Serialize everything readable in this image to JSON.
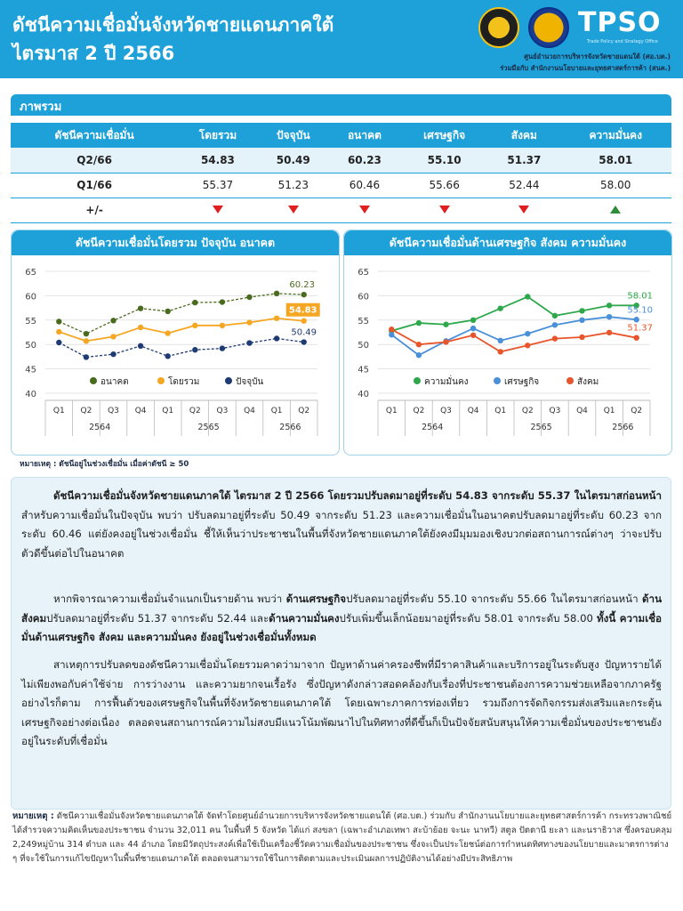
{
  "header": {
    "title_line1": "ดัชนีความเชื่อมั่นจังหวัดชายแดนภาคใต้",
    "title_line2": "ไตรมาส 2 ปี 2566",
    "brand": "TPSO",
    "brand_sub": "Trade Policy and Strategy Office",
    "credit_line1": "ศูนย์อำนวยการบริหารจังหวัดชายแดนใต้ (ศอ.บต.)",
    "credit_line2": "ร่วมมือกับ สำนักงานนโยบายและยุทธศาสตร์การค้า (สนค.)"
  },
  "overview": {
    "section_title": "ภาพรวม",
    "columns": [
      "ดัชนีความเชื่อมั่น",
      "โดยรวม",
      "ปัจจุบัน",
      "อนาคต",
      "เศรษฐกิจ",
      "สังคม",
      "ความมั่นคง"
    ],
    "rows": [
      {
        "label": "Q2/66",
        "values": [
          "54.83",
          "50.49",
          "60.23",
          "55.10",
          "51.37",
          "58.01"
        ]
      },
      {
        "label": "Q1/66",
        "values": [
          "55.37",
          "51.23",
          "60.46",
          "55.66",
          "52.44",
          "58.00"
        ]
      }
    ],
    "change_label": "+/-",
    "change": [
      "down",
      "down",
      "down",
      "down",
      "down",
      "up"
    ],
    "colors": {
      "down": "#e02020",
      "up": "#2e8b3a",
      "accent": "#1da1d8"
    }
  },
  "chart_data": [
    {
      "type": "line",
      "title": "ดัชนีความเชื่อมั่นโดยรวม ปัจจุบัน อนาคต",
      "categories": [
        "Q1",
        "Q2",
        "Q3",
        "Q4",
        "Q1",
        "Q2",
        "Q3",
        "Q4",
        "Q1",
        "Q2"
      ],
      "year_groups": [
        {
          "label": "2564",
          "span": 4
        },
        {
          "label": "2565",
          "span": 4
        },
        {
          "label": "2566",
          "span": 2
        }
      ],
      "ylim": [
        40,
        65
      ],
      "yticks": [
        40,
        45,
        50,
        55,
        60,
        65
      ],
      "legend_position": "bottom",
      "series": [
        {
          "name": "อนาคต",
          "color": "#4a6b1e",
          "dashed": true,
          "values": [
            54.7,
            52.2,
            54.9,
            57.4,
            56.8,
            58.6,
            58.7,
            59.7,
            60.46,
            60.23
          ],
          "end_label": "60.23"
        },
        {
          "name": "โดยรวม",
          "color": "#f5a623",
          "dashed": false,
          "values": [
            52.6,
            50.7,
            51.6,
            53.5,
            52.3,
            53.9,
            53.9,
            54.5,
            55.37,
            54.83
          ],
          "end_label": "54.83"
        },
        {
          "name": "ปัจจุบัน",
          "color": "#1f3b73",
          "dashed": true,
          "values": [
            50.4,
            47.4,
            48.0,
            49.7,
            47.6,
            48.9,
            49.2,
            50.3,
            51.23,
            50.49
          ],
          "end_label": "50.49"
        }
      ]
    },
    {
      "type": "line",
      "title": "ดัชนีความเชื่อมั่นด้านเศรษฐกิจ สังคม ความมั่นคง",
      "categories": [
        "Q1",
        "Q2",
        "Q3",
        "Q4",
        "Q1",
        "Q2",
        "Q3",
        "Q4",
        "Q1",
        "Q2"
      ],
      "year_groups": [
        {
          "label": "2564",
          "span": 4
        },
        {
          "label": "2565",
          "span": 4
        },
        {
          "label": "2566",
          "span": 2
        }
      ],
      "ylim": [
        40,
        65
      ],
      "yticks": [
        40,
        45,
        50,
        55,
        60,
        65
      ],
      "legend_position": "bottom",
      "series": [
        {
          "name": "ความมั่นคง",
          "color": "#2ea84a",
          "dashed": false,
          "values": [
            52.8,
            54.4,
            54.1,
            55.0,
            57.4,
            59.8,
            55.9,
            56.9,
            58.0,
            58.01
          ],
          "end_label": "58.01"
        },
        {
          "name": "เศรษฐกิจ",
          "color": "#4a90d9",
          "dashed": false,
          "values": [
            52.0,
            47.8,
            50.7,
            53.3,
            50.8,
            52.2,
            54.0,
            55.0,
            55.66,
            55.1
          ],
          "end_label": "55.10"
        },
        {
          "name": "สังคม",
          "color": "#e8552b",
          "dashed": false,
          "values": [
            53.1,
            50.0,
            50.5,
            51.9,
            48.5,
            49.8,
            51.2,
            51.5,
            52.44,
            51.37
          ],
          "end_label": "51.37"
        }
      ]
    }
  ],
  "chart_note": "หมายเหตุ : ดัชนีอยู่ในช่วงเชื่อมั่น เมื่อค่าดัชนี ≥ 50",
  "paragraphs": {
    "p1_bold": "ดัชนีความเชื่อมั่นจังหวัดชายแดนภาคใต้ ไตรมาส 2 ปี 2566 โดยรวมปรับลดมาอยู่ที่ระดับ 54.83 จากระดับ 55.37 ในไตรมาสก่อนหน้า",
    "p1_rest": " สำหรับความเชื่อมั่นในปัจจุบัน พบว่า ปรับลดมาอยู่ที่ระดับ 50.49 จากระดับ 51.23 และความเชื่อมั่นในอนาคตปรับลดมาอยู่ที่ระดับ 60.23 จากระดับ 60.46 แต่ยังคงอยู่ในช่วงเชื่อมั่น ชี้ให้เห็นว่าประชาชนในพื้นที่จังหวัดชายแดนภาคใต้ยังคงมีมุมมองเชิงบวกต่อสถานการณ์ต่างๆ ว่าจะปรับตัวดีขึ้นต่อไปในอนาคต",
    "p2_a": "หากพิจารณาความเชื่อมั่นจำแนกเป็นรายด้าน พบว่า ",
    "p2_b": "ด้านเศรษฐกิจ",
    "p2_c": "ปรับลดมาอยู่ที่ระดับ 55.10 จากระดับ 55.66 ในไตรมาสก่อนหน้า ",
    "p2_d": "ด้านสังคม",
    "p2_e": "ปรับลดมาอยู่ที่ระดับ 51.37 จากระดับ 52.44 และ",
    "p2_f": "ด้านความมั่นคง",
    "p2_g": "ปรับเพิ่มขึ้นเล็กน้อยมาอยู่ที่ระดับ 58.01 จากระดับ 58.00 ",
    "p2_h": "ทั้งนี้ ความเชื่อมั่นด้านเศรษฐกิจ สังคม และความมั่นคง ยังอยู่ในช่วงเชื่อมั่นทั้งหมด",
    "p3": "สาเหตุการปรับลดของดัชนีความเชื่อมั่นโดยรวมคาดว่ามาจาก ปัญหาด้านค่าครองชีพที่มีราคาสินค้าและบริการอยู่ในระดับสูง ปัญหารายได้ไม่เพียงพอกับค่าใช้จ่าย การว่างงาน และความยากจนเรื้อรัง ซึ่งปัญหาดังกล่าวสอดคล้องกับเรื่องที่ประชาชนต้องการความช่วยเหลือจากภาครัฐ อย่างไรก็ตาม การฟื้นตัวของเศรษฐกิจในพื้นที่จังหวัดชายแดนภาคใต้ โดยเฉพาะภาคการท่องเที่ยว รวมถึงการจัดกิจกรรมส่งเสริมและกระตุ้นเศรษฐกิจอย่างต่อเนื่อง ตลอดจนสถานการณ์ความไม่สงบมีแนวโน้มพัฒนาไปในทิศทางที่ดีขึ้นก็เป็นปัจจัยสนับสนุนให้ความเชื่อมั่นของประชาชนยังอยู่ในระดับที่เชื่อมั่น"
  },
  "footnote": {
    "label": "หมายเหตุ :",
    "text": " ดัชนีความเชื่อมั่นจังหวัดชายแดนภาคใต้ จัดทำโดยศูนย์อำนวยการบริหารจังหวัดชายแดนใต้ (ศอ.บต.) ร่วมกับ สำนักงานนโยบายและยุทธศาสตร์การค้า กระทรวงพาณิชย์ ได้สำรวจความคิดเห็นของประชาชน จำนวน 32,011 คน ในพื้นที่ 5 จังหวัด ได้แก่ สงขลา (เฉพาะอำเภอเทพา สะบ้าย้อย จะนะ นาทวี) สตูล ปัตตานี ยะลา และนราธิวาส ซึ่งครอบคลุม 2,249หมู่บ้าน 314 ตำบล และ 44 อำเภอ โดยมีวัตถุประสงค์เพื่อใช้เป็นเครื่องชี้วัดความเชื่อมั่นของประชาชน ซึ่งจะเป็นประโยชน์ต่อการกำหนดทิศทางของนโยบายและมาตรการต่าง ๆ ที่จะใช้ในการแก้ไขปัญหาในพื้นที่ชายแดนภาคใต้ ตลอดจนสามารถใช้ในการติดตามและประเมินผลการปฏิบัติงานได้อย่างมีประสิทธิภาพ"
  }
}
